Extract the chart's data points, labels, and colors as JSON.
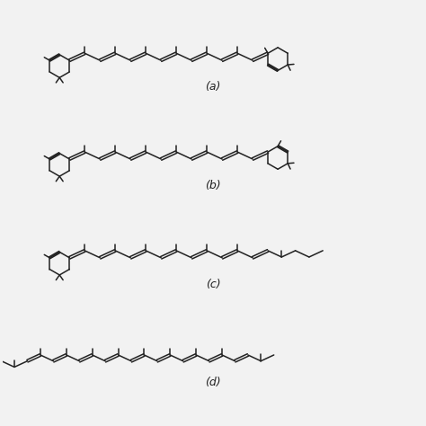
{
  "background_color": "#f2f2f2",
  "line_color": "#222222",
  "labels": [
    "(a)",
    "(b)",
    "(c)",
    "(d)"
  ],
  "label_fontsize": 9,
  "lw": 1.1,
  "figsize": [
    4.74,
    4.74
  ],
  "dpi": 100
}
